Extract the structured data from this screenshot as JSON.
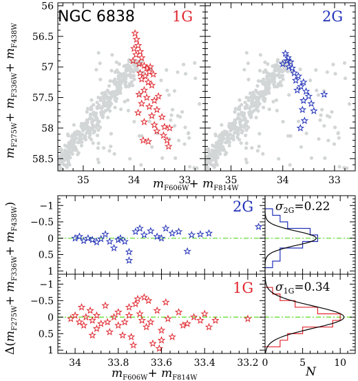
{
  "colors": {
    "gray": "#d3d6d6",
    "red": "#e0262e",
    "blue": "#2030b8",
    "green": "#66dd33",
    "black": "#000000"
  },
  "figure": {
    "cluster_name": "NGC 6838",
    "cmd_xlabel": {
      "sym": "m",
      "sub1": "F606W",
      "plus": "+ ",
      "sym2": "m",
      "sub2": "F814W"
    },
    "cmd_ylabel": {
      "sym": "m",
      "sub1": "F275W",
      "plus": "+ ",
      "sym2": "m",
      "sub2": "F336W",
      "plus2": "+ ",
      "sym3": "m",
      "sub3": "F438W"
    },
    "delta_ylabel": {
      "prefix": "Δ(",
      "sym": "m",
      "sub1": "F275W",
      "plus": "+ ",
      "sym2": "m",
      "sub2": "F336W",
      "plus2": "+ ",
      "sym3": "m",
      "sub3": "F438W",
      "suffix": ")"
    },
    "delta_xlabel": {
      "sym": "m",
      "sub1": "F606W",
      "plus": "+ ",
      "sym2": "m",
      "sub2": "F814W"
    },
    "hist_xlabel": "N"
  },
  "chart_data": [
    {
      "type": "scatter",
      "panel": "cmd-1G",
      "label": "1G",
      "xlim": [
        35.5,
        32.6
      ],
      "ylim": [
        58.7,
        55.95
      ],
      "xticks": [
        35,
        34,
        33
      ],
      "yticks": [
        56,
        56.5,
        57,
        57.5,
        58,
        58.5
      ],
      "series": [
        {
          "role": "background",
          "marker": "dot",
          "color": "gray"
        },
        {
          "role": "highlight",
          "marker": "star",
          "color": "red",
          "label": "1G",
          "points": [
            [
              33.98,
              56.45
            ],
            [
              33.95,
              56.55
            ],
            [
              33.92,
              56.65
            ],
            [
              34.0,
              56.7
            ],
            [
              33.88,
              56.75
            ],
            [
              33.96,
              56.8
            ],
            [
              33.85,
              56.85
            ],
            [
              34.02,
              56.9
            ],
            [
              33.9,
              56.95
            ],
            [
              33.8,
              56.98
            ],
            [
              33.75,
              57.02
            ],
            [
              33.68,
              57.0
            ],
            [
              33.7,
              57.08
            ],
            [
              33.62,
              57.12
            ],
            [
              33.78,
              57.15
            ],
            [
              33.85,
              57.2
            ],
            [
              33.72,
              57.25
            ],
            [
              33.65,
              57.3
            ],
            [
              33.8,
              57.38
            ],
            [
              33.9,
              57.45
            ],
            [
              33.75,
              57.5
            ],
            [
              33.6,
              57.55
            ],
            [
              33.85,
              57.6
            ],
            [
              33.7,
              57.65
            ],
            [
              33.55,
              57.7
            ],
            [
              33.92,
              57.75
            ],
            [
              33.65,
              57.8
            ],
            [
              33.45,
              57.82
            ],
            [
              33.8,
              57.9
            ],
            [
              33.6,
              57.95
            ],
            [
              33.4,
              57.98
            ],
            [
              33.3,
              58.0
            ],
            [
              33.55,
              58.05
            ],
            [
              33.42,
              58.12
            ],
            [
              33.35,
              58.2
            ],
            [
              33.72,
              58.22
            ],
            [
              33.32,
              58.3
            ],
            [
              33.82,
              58.2
            ],
            [
              33.52,
              57.48
            ],
            [
              33.88,
              57.1
            ]
          ]
        }
      ]
    },
    {
      "type": "scatter",
      "panel": "cmd-2G",
      "label": "2G",
      "xlim": [
        35.5,
        32.6
      ],
      "ylim": [
        58.7,
        55.95
      ],
      "xticks": [
        35,
        34,
        33
      ],
      "yticks": [
        56,
        56.5,
        57,
        57.5,
        58,
        58.5
      ],
      "series": [
        {
          "role": "background",
          "marker": "dot",
          "color": "gray"
        },
        {
          "role": "highlight",
          "marker": "star",
          "color": "blue",
          "label": "2G",
          "points": [
            [
              33.95,
              56.78
            ],
            [
              33.9,
              56.85
            ],
            [
              33.85,
              56.92
            ],
            [
              34.0,
              56.95
            ],
            [
              33.88,
              57.0
            ],
            [
              33.82,
              57.02
            ],
            [
              33.78,
              57.1
            ],
            [
              33.7,
              57.15
            ],
            [
              33.75,
              57.22
            ],
            [
              33.6,
              57.25
            ],
            [
              33.65,
              57.32
            ],
            [
              33.72,
              57.38
            ],
            [
              33.55,
              57.4
            ],
            [
              33.5,
              57.48
            ],
            [
              33.6,
              57.55
            ],
            [
              33.45,
              57.6
            ],
            [
              33.62,
              57.7
            ],
            [
              33.4,
              57.72
            ],
            [
              33.58,
              57.88
            ],
            [
              33.2,
              57.45
            ],
            [
              33.66,
              58.0
            ],
            [
              33.92,
              56.9
            ]
          ]
        }
      ]
    },
    {
      "type": "scatter",
      "panel": "delta-2G",
      "label": "2G",
      "xlim": [
        34.08,
        33.12
      ],
      "ylim": [
        1.1,
        -1.3
      ],
      "yticks": [
        -1,
        -0.5,
        0,
        0.5,
        1
      ],
      "reference_line": 0,
      "series": [
        {
          "name": "2G",
          "marker": "star",
          "color": "blue",
          "points": [
            [
              34.0,
              0.0
            ],
            [
              33.98,
              -0.05
            ],
            [
              33.96,
              0.08
            ],
            [
              33.94,
              0.0
            ],
            [
              33.92,
              0.05
            ],
            [
              33.9,
              0.12
            ],
            [
              33.88,
              0.02
            ],
            [
              33.86,
              -0.12
            ],
            [
              33.84,
              0.1
            ],
            [
              33.82,
              0.3
            ],
            [
              33.8,
              0.05
            ],
            [
              33.79,
              0.0
            ],
            [
              33.77,
              0.1
            ],
            [
              33.75,
              0.42
            ],
            [
              33.75,
              0.68
            ],
            [
              33.72,
              -0.2
            ],
            [
              33.7,
              -0.3
            ],
            [
              33.68,
              -0.1
            ],
            [
              33.65,
              -0.22
            ],
            [
              33.62,
              -0.05
            ],
            [
              33.6,
              0.0
            ],
            [
              33.58,
              -0.3
            ],
            [
              33.55,
              -0.15
            ],
            [
              33.52,
              -0.2
            ],
            [
              33.48,
              0.4
            ],
            [
              33.46,
              -0.1
            ],
            [
              33.42,
              -0.12
            ],
            [
              33.38,
              -0.15
            ],
            [
              33.15,
              -0.35
            ]
          ]
        }
      ],
      "histogram": {
        "sigma_label": "σ2G=0.22",
        "sigma_sym": "σ",
        "sigma_sub": "2G",
        "sigma_value": "=0.22",
        "xlim": [
          0,
          12
        ],
        "xticks": [
          0,
          5,
          10
        ],
        "bin_edges": [
          -0.9,
          -0.7,
          -0.5,
          -0.3,
          -0.1,
          0.1,
          0.3,
          0.5,
          0.7,
          0.9
        ],
        "counts": [
          1,
          2,
          3,
          6,
          7,
          5,
          2,
          2,
          1
        ],
        "fit_sigma": 0.22,
        "fit_peak": 6.8,
        "fit_mean": 0
      }
    },
    {
      "type": "scatter",
      "panel": "delta-1G",
      "label": "1G",
      "xlim": [
        34.08,
        33.12
      ],
      "ylim": [
        1.1,
        -1.3
      ],
      "yticks": [
        -1,
        -0.5,
        0,
        0.5,
        1
      ],
      "reference_line": 0,
      "series": [
        {
          "name": "1G",
          "marker": "star",
          "color": "red",
          "points": [
            [
              34.02,
              0.05
            ],
            [
              34.0,
              -0.05
            ],
            [
              33.98,
              0.15
            ],
            [
              33.97,
              -0.3
            ],
            [
              33.96,
              0.25
            ],
            [
              33.95,
              0.0
            ],
            [
              33.93,
              -0.2
            ],
            [
              33.92,
              0.1
            ],
            [
              33.9,
              0.35
            ],
            [
              33.9,
              -0.05
            ],
            [
              33.88,
              0.2
            ],
            [
              33.86,
              -0.35
            ],
            [
              33.85,
              0.15
            ],
            [
              33.84,
              0.45
            ],
            [
              33.82,
              0.0
            ],
            [
              33.8,
              0.25
            ],
            [
              33.8,
              -0.15
            ],
            [
              33.78,
              0.55
            ],
            [
              33.77,
              0.15
            ],
            [
              33.75,
              -0.3
            ],
            [
              33.74,
              0.6
            ],
            [
              33.73,
              0.85
            ],
            [
              33.72,
              -0.4
            ],
            [
              33.71,
              -0.55
            ],
            [
              33.7,
              -0.1
            ],
            [
              33.69,
              0.1
            ],
            [
              33.68,
              -0.6
            ],
            [
              33.67,
              0.3
            ],
            [
              33.66,
              -0.5
            ],
            [
              33.65,
              0.15
            ],
            [
              33.64,
              0.8
            ],
            [
              33.62,
              -0.2
            ],
            [
              33.61,
              0.95
            ],
            [
              33.6,
              0.4
            ],
            [
              33.58,
              -0.45
            ],
            [
              33.57,
              0.05
            ],
            [
              33.55,
              0.6
            ],
            [
              33.52,
              -0.15
            ],
            [
              33.5,
              0.25
            ],
            [
              33.48,
              0.2
            ],
            [
              33.45,
              0.0
            ],
            [
              33.42,
              0.1
            ],
            [
              33.4,
              -0.1
            ],
            [
              33.38,
              0.3
            ],
            [
              33.35,
              0.1
            ],
            [
              33.2,
              0.05
            ],
            [
              33.92,
              0.55
            ],
            [
              33.75,
              -0.05
            ],
            [
              33.6,
              0.7
            ]
          ]
        }
      ],
      "histogram": {
        "sigma_label": "σ1G=0.34",
        "sigma_sym": "σ",
        "sigma_sub": "1G",
        "sigma_value": "=0.34",
        "xlim": [
          0,
          12
        ],
        "xticks": [
          0,
          5,
          10
        ],
        "bin_edges": [
          -0.9,
          -0.7,
          -0.5,
          -0.3,
          -0.1,
          0.1,
          0.3,
          0.5,
          0.7,
          0.9
        ],
        "counts": [
          1,
          2,
          4,
          7,
          10,
          9,
          5,
          3,
          2
        ],
        "fit_sigma": 0.34,
        "fit_peak": 10.5,
        "fit_mean": 0
      }
    }
  ]
}
